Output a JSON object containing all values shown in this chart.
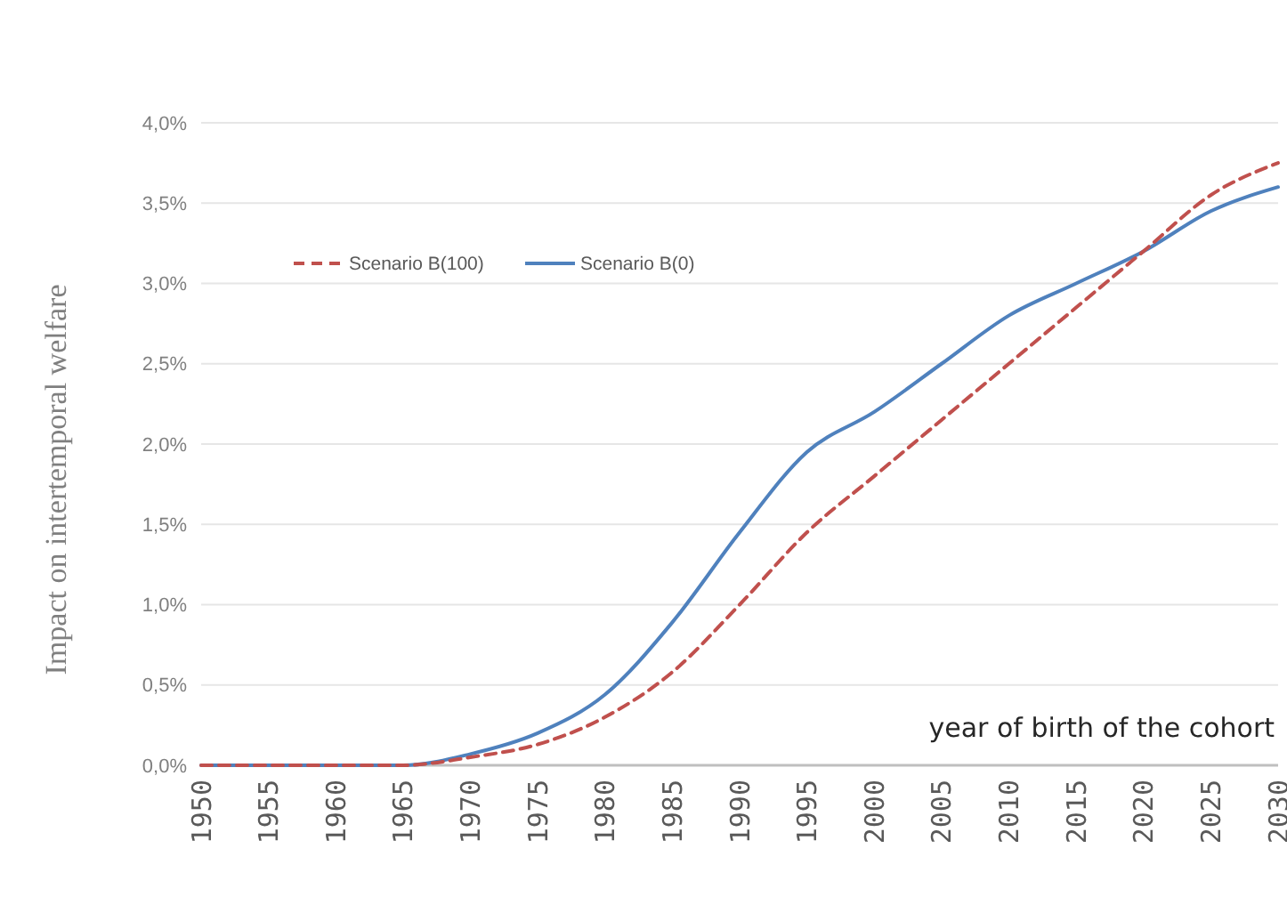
{
  "chart_data": {
    "type": "line",
    "xlabel": "year of birth of the cohort",
    "ylabel": "Impact on intertemporal welfare",
    "x": [
      1950,
      1955,
      1960,
      1965,
      1970,
      1975,
      1980,
      1985,
      1990,
      1995,
      2000,
      2005,
      2010,
      2015,
      2020,
      2025,
      2030
    ],
    "xlim": [
      1950,
      2030
    ],
    "xticks": [
      1950,
      1955,
      1960,
      1965,
      1970,
      1975,
      1980,
      1985,
      1990,
      1995,
      2000,
      2005,
      2010,
      2015,
      2020,
      2025,
      2030
    ],
    "ylim": [
      0,
      4
    ],
    "yticks": [
      {
        "value": 0,
        "label": "0,0%"
      },
      {
        "value": 0.5,
        "label": "0,5%"
      },
      {
        "value": 1,
        "label": "1,0%"
      },
      {
        "value": 1.5,
        "label": "1,5%"
      },
      {
        "value": 2,
        "label": "2,0%"
      },
      {
        "value": 2.5,
        "label": "2,5%"
      },
      {
        "value": 3,
        "label": "3,0%"
      },
      {
        "value": 3.5,
        "label": "3,5%"
      },
      {
        "value": 4,
        "label": "4,0%"
      }
    ],
    "grid": "y",
    "legend": "top left",
    "marker": "none",
    "series": [
      {
        "name": "Scenario B(100)",
        "color": "#c0504d",
        "line_style": "dashed",
        "values": [
          0,
          0,
          0,
          0,
          0.05,
          0.13,
          0.3,
          0.58,
          1.0,
          1.45,
          1.8,
          2.15,
          2.5,
          2.85,
          3.2,
          3.55,
          3.75
        ]
      },
      {
        "name": "Scenario B(0)",
        "color": "#4f81bd",
        "line_style": "solid",
        "values": [
          0,
          0,
          0,
          0,
          0.07,
          0.2,
          0.44,
          0.89,
          1.45,
          1.95,
          2.2,
          2.5,
          2.8,
          3.0,
          3.2,
          3.45,
          3.6
        ]
      }
    ]
  }
}
